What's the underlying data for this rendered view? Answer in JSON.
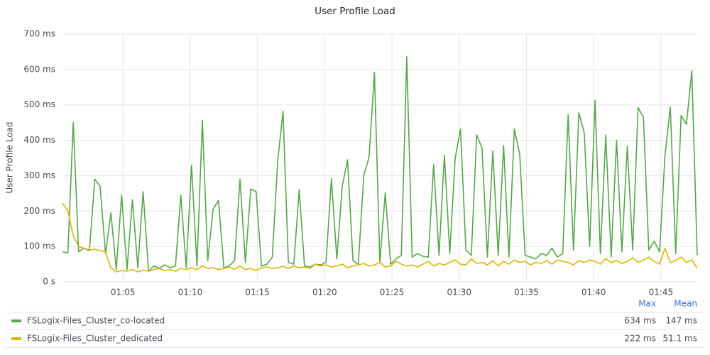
{
  "chart_data": {
    "type": "line",
    "title": "User Profile Load",
    "ylabel": "User Profile Load",
    "ylim": [
      0,
      700
    ],
    "yticks": [
      {
        "value": 0,
        "label": "0 s"
      },
      {
        "value": 100,
        "label": "100 ms"
      },
      {
        "value": 200,
        "label": "200 ms"
      },
      {
        "value": 300,
        "label": "300 ms"
      },
      {
        "value": 400,
        "label": "400 ms"
      },
      {
        "value": 500,
        "label": "500 ms"
      },
      {
        "value": 600,
        "label": "600 ms"
      },
      {
        "value": 700,
        "label": "700 ms"
      }
    ],
    "xlim": [
      0.5,
      47.7
    ],
    "xticks": [
      {
        "value": 5,
        "label": "01:05"
      },
      {
        "value": 10,
        "label": "01:10"
      },
      {
        "value": 15,
        "label": "01:15"
      },
      {
        "value": 20,
        "label": "01:20"
      },
      {
        "value": 25,
        "label": "01:25"
      },
      {
        "value": 30,
        "label": "01:30"
      },
      {
        "value": 35,
        "label": "01:35"
      },
      {
        "value": 40,
        "label": "01:40"
      },
      {
        "value": 45,
        "label": "01:45"
      }
    ],
    "grid": true,
    "legend_headers": [
      "Max",
      "Mean"
    ],
    "x": [
      0.5,
      0.9,
      1.3,
      1.7,
      2.1,
      2.5,
      2.9,
      3.3,
      3.7,
      4.1,
      4.5,
      4.9,
      5.3,
      5.7,
      6.1,
      6.5,
      6.9,
      7.3,
      7.7,
      8.1,
      8.5,
      8.9,
      9.3,
      9.7,
      10.1,
      10.5,
      10.9,
      11.3,
      11.7,
      12.1,
      12.5,
      12.9,
      13.3,
      13.7,
      14.1,
      14.5,
      14.9,
      15.3,
      15.7,
      16.1,
      16.5,
      16.9,
      17.3,
      17.7,
      18.1,
      18.5,
      18.9,
      19.3,
      19.7,
      20.1,
      20.5,
      20.9,
      21.3,
      21.7,
      22.1,
      22.5,
      22.9,
      23.3,
      23.7,
      24.1,
      24.5,
      24.9,
      25.3,
      25.7,
      26.1,
      26.5,
      26.9,
      27.3,
      27.7,
      28.1,
      28.5,
      28.9,
      29.3,
      29.7,
      30.1,
      30.5,
      30.9,
      31.3,
      31.7,
      32.1,
      32.5,
      32.9,
      33.3,
      33.7,
      34.1,
      34.5,
      34.9,
      35.3,
      35.7,
      36.1,
      36.5,
      36.9,
      37.3,
      37.7,
      38.1,
      38.5,
      38.9,
      39.3,
      39.7,
      40.1,
      40.5,
      40.9,
      41.3,
      41.7,
      42.1,
      42.5,
      42.9,
      43.3,
      43.7,
      44.1,
      44.5,
      44.9,
      45.3,
      45.7,
      46.1,
      46.5,
      46.9,
      47.3,
      47.7
    ],
    "series": [
      {
        "name": "FSLogix-Files_Cluster_co-located",
        "color": "#56a64b",
        "max": "634 ms",
        "mean": "147 ms",
        "values": [
          85,
          82,
          450,
          85,
          95,
          88,
          290,
          270,
          80,
          195,
          35,
          245,
          35,
          232,
          40,
          255,
          30,
          45,
          38,
          48,
          40,
          45,
          245,
          40,
          330,
          45,
          457,
          60,
          205,
          230,
          40,
          45,
          60,
          290,
          55,
          262,
          255,
          45,
          50,
          70,
          340,
          482,
          55,
          50,
          260,
          45,
          42,
          50,
          48,
          55,
          292,
          65,
          270,
          345,
          60,
          50,
          300,
          352,
          592,
          55,
          252,
          50,
          65,
          75,
          636,
          70,
          80,
          72,
          70,
          332,
          75,
          358,
          80,
          350,
          432,
          90,
          75,
          415,
          378,
          70,
          370,
          75,
          385,
          70,
          432,
          360,
          75,
          70,
          65,
          80,
          75,
          95,
          70,
          80,
          472,
          90,
          478,
          420,
          100,
          512,
          80,
          415,
          70,
          400,
          85,
          383,
          90,
          492,
          465,
          90,
          115,
          85,
          355,
          494,
          80,
          470,
          445,
          596,
          75
        ]
      },
      {
        "name": "FSLogix-Files_Cluster_dedicated",
        "color": "#e0b400",
        "max": "222 ms",
        "mean": "51.1 ms",
        "values": [
          222,
          200,
          130,
          100,
          95,
          90,
          92,
          88,
          85,
          40,
          28,
          32,
          30,
          35,
          28,
          33,
          30,
          35,
          38,
          32,
          35,
          30,
          38,
          35,
          40,
          35,
          45,
          38,
          40,
          35,
          38,
          42,
          36,
          45,
          35,
          38,
          32,
          40,
          42,
          38,
          40,
          44,
          38,
          45,
          40,
          42,
          38,
          50,
          45,
          48,
          42,
          45,
          50,
          40,
          45,
          48,
          52,
          45,
          48,
          55,
          42,
          45,
          58,
          50,
          45,
          48,
          42,
          50,
          58,
          45,
          52,
          48,
          55,
          62,
          50,
          48,
          65,
          52,
          55,
          48,
          60,
          45,
          58,
          50,
          62,
          55,
          58,
          48,
          55,
          52,
          60,
          50,
          62,
          58,
          55,
          48,
          60,
          55,
          62,
          58,
          50,
          65,
          55,
          60,
          52,
          58,
          68,
          55,
          62,
          70,
          58,
          50,
          95,
          55,
          60,
          70,
          55,
          62,
          38
        ]
      }
    ]
  }
}
